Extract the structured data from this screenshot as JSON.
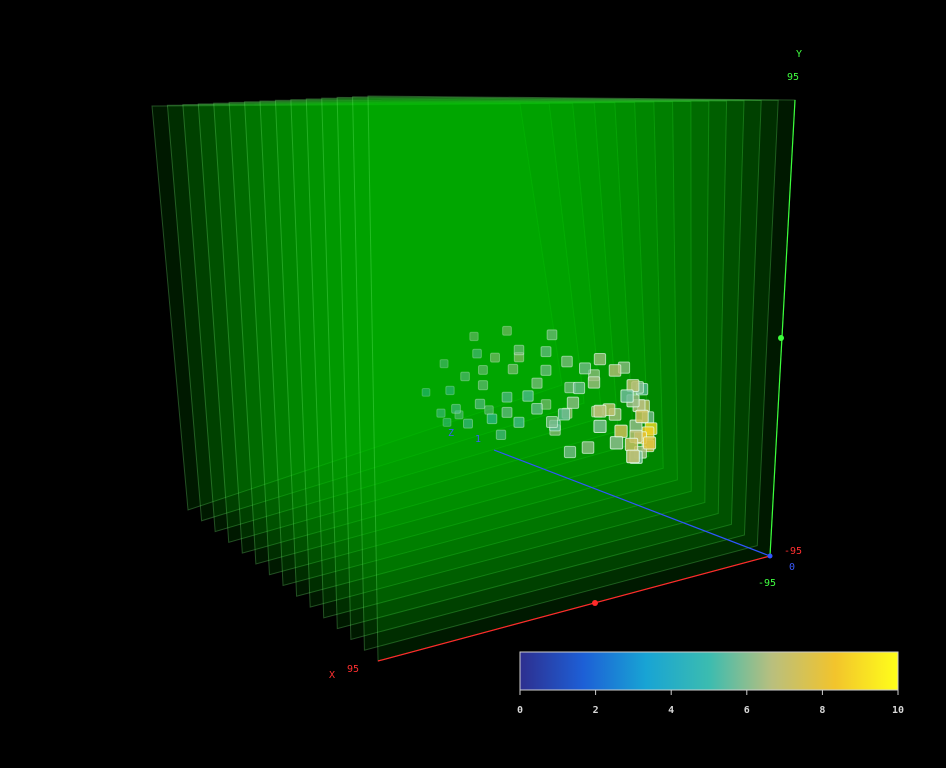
{
  "chart_data": {
    "type": "scatter",
    "subtype": "3d-voxel-slices",
    "axes": {
      "x": {
        "label": "X",
        "min": -95,
        "max": 95,
        "end_label": "95",
        "color": "#ff3030"
      },
      "y": {
        "label": "Y",
        "min": -95,
        "max": 95,
        "end_label": "95",
        "start_label": "-95",
        "color": "#40ff40"
      },
      "z": {
        "label": "Z",
        "min": 0,
        "max": 1,
        "start_label": "0",
        "end_label": "1",
        "color": "#3a5bff"
      },
      "corner_labels": {
        "x_min": "-95",
        "y_min": "-95",
        "z_min": "0"
      }
    },
    "slice_count": 15,
    "slice_color": "#00c000",
    "colorbar": {
      "min": 0,
      "max": 10,
      "ticks": [
        "0",
        "2",
        "4",
        "6",
        "8",
        "10"
      ],
      "colors": [
        "#2e2f8f",
        "#1d5fd6",
        "#18a4d4",
        "#3bbcb0",
        "#b9bf7e",
        "#f2c42c",
        "#ffff1a"
      ]
    },
    "points": [
      [
        0.65,
        0.24,
        0.9,
        7.2
      ],
      [
        0.72,
        0.26,
        0.86,
        6.8
      ],
      [
        0.78,
        0.22,
        0.83,
        8.1
      ],
      [
        0.86,
        0.22,
        0.8,
        8.6
      ],
      [
        0.82,
        0.18,
        0.85,
        7.9
      ],
      [
        0.9,
        0.23,
        0.78,
        9.1
      ],
      [
        0.74,
        0.32,
        0.84,
        6.2
      ],
      [
        0.68,
        0.14,
        0.9,
        5.8
      ],
      [
        0.79,
        0.11,
        0.82,
        6.4
      ],
      [
        0.87,
        0.12,
        0.79,
        7.6
      ],
      [
        0.93,
        0.28,
        0.73,
        5.9
      ],
      [
        0.76,
        0.46,
        0.84,
        6.6
      ],
      [
        0.83,
        0.42,
        0.8,
        7.1
      ],
      [
        0.7,
        0.52,
        0.86,
        6.3
      ],
      [
        0.64,
        0.58,
        0.88,
        5.7
      ],
      [
        0.74,
        0.6,
        0.82,
        6.9
      ],
      [
        0.81,
        0.55,
        0.78,
        6.0
      ],
      [
        0.88,
        0.5,
        0.74,
        5.5
      ],
      [
        0.6,
        0.34,
        0.88,
        7.4
      ],
      [
        0.55,
        0.28,
        0.9,
        6.1
      ],
      [
        0.48,
        0.4,
        0.86,
        5.9
      ],
      [
        0.52,
        0.48,
        0.82,
        6.7
      ],
      [
        0.6,
        0.46,
        0.8,
        7.0
      ],
      [
        0.66,
        0.4,
        0.78,
        6.5
      ],
      [
        0.44,
        0.52,
        0.72,
        6.2
      ],
      [
        0.5,
        0.6,
        0.7,
        5.8
      ],
      [
        0.56,
        0.64,
        0.74,
        6.4
      ],
      [
        0.4,
        0.44,
        0.7,
        5.6
      ],
      [
        0.36,
        0.38,
        0.66,
        6.0
      ],
      [
        0.42,
        0.32,
        0.62,
        5.5
      ],
      [
        0.46,
        0.26,
        0.58,
        6.3
      ],
      [
        0.32,
        0.46,
        0.6,
        5.7
      ],
      [
        0.3,
        0.54,
        0.56,
        5.4
      ],
      [
        0.38,
        0.6,
        0.54,
        6.1
      ],
      [
        0.46,
        0.66,
        0.52,
        5.9
      ],
      [
        0.28,
        0.34,
        0.52,
        5.3
      ],
      [
        0.22,
        0.42,
        0.5,
        5.8
      ],
      [
        0.26,
        0.5,
        0.46,
        5.5
      ],
      [
        0.34,
        0.66,
        0.42,
        6.2
      ],
      [
        0.18,
        0.36,
        0.44,
        5.0
      ],
      [
        0.14,
        0.46,
        0.4,
        5.6
      ],
      [
        0.2,
        0.56,
        0.36,
        5.9
      ],
      [
        0.24,
        0.64,
        0.32,
        6.0
      ],
      [
        0.12,
        0.3,
        0.34,
        5.2
      ],
      [
        0.08,
        0.4,
        0.3,
        5.4
      ],
      [
        0.16,
        0.6,
        0.28,
        5.7
      ],
      [
        0.3,
        0.72,
        0.34,
        6.3
      ],
      [
        0.4,
        0.72,
        0.4,
        6.5
      ],
      [
        0.52,
        0.74,
        0.6,
        6.1
      ],
      [
        0.58,
        0.7,
        0.66,
        5.9
      ],
      [
        0.62,
        0.78,
        0.72,
        6.4
      ],
      [
        0.48,
        0.78,
        0.5,
        5.8
      ],
      [
        0.36,
        0.8,
        0.44,
        6.0
      ],
      [
        0.24,
        0.74,
        0.28,
        5.5
      ],
      [
        0.1,
        0.5,
        0.24,
        5.1
      ],
      [
        0.06,
        0.34,
        0.22,
        5.3
      ],
      [
        0.2,
        0.28,
        0.2,
        5.6
      ],
      [
        0.34,
        0.3,
        0.26,
        5.8
      ],
      [
        0.54,
        0.36,
        0.44,
        6.2
      ],
      [
        0.62,
        0.3,
        0.5,
        6.6
      ],
      [
        0.7,
        0.34,
        0.62,
        6.8
      ],
      [
        0.58,
        0.52,
        0.56,
        6.0
      ],
      [
        0.66,
        0.62,
        0.64,
        6.3
      ],
      [
        0.44,
        0.16,
        0.7,
        5.9
      ],
      [
        0.5,
        0.2,
        0.76,
        6.2
      ],
      [
        0.28,
        0.2,
        0.4,
        5.4
      ],
      [
        0.16,
        0.22,
        0.16,
        5.2
      ],
      [
        0.04,
        0.46,
        0.14,
        5.0
      ],
      [
        0.12,
        0.66,
        0.18,
        5.6
      ],
      [
        0.26,
        0.84,
        0.24,
        6.1
      ],
      [
        0.42,
        0.86,
        0.3,
        6.3
      ],
      [
        0.56,
        0.86,
        0.46,
        6.0
      ],
      [
        0.68,
        0.7,
        0.76,
        6.7
      ],
      [
        0.8,
        0.66,
        0.7,
        6.2
      ],
      [
        0.72,
        0.42,
        0.9,
        7.3
      ],
      [
        0.62,
        0.18,
        0.94,
        6.9
      ]
    ]
  }
}
